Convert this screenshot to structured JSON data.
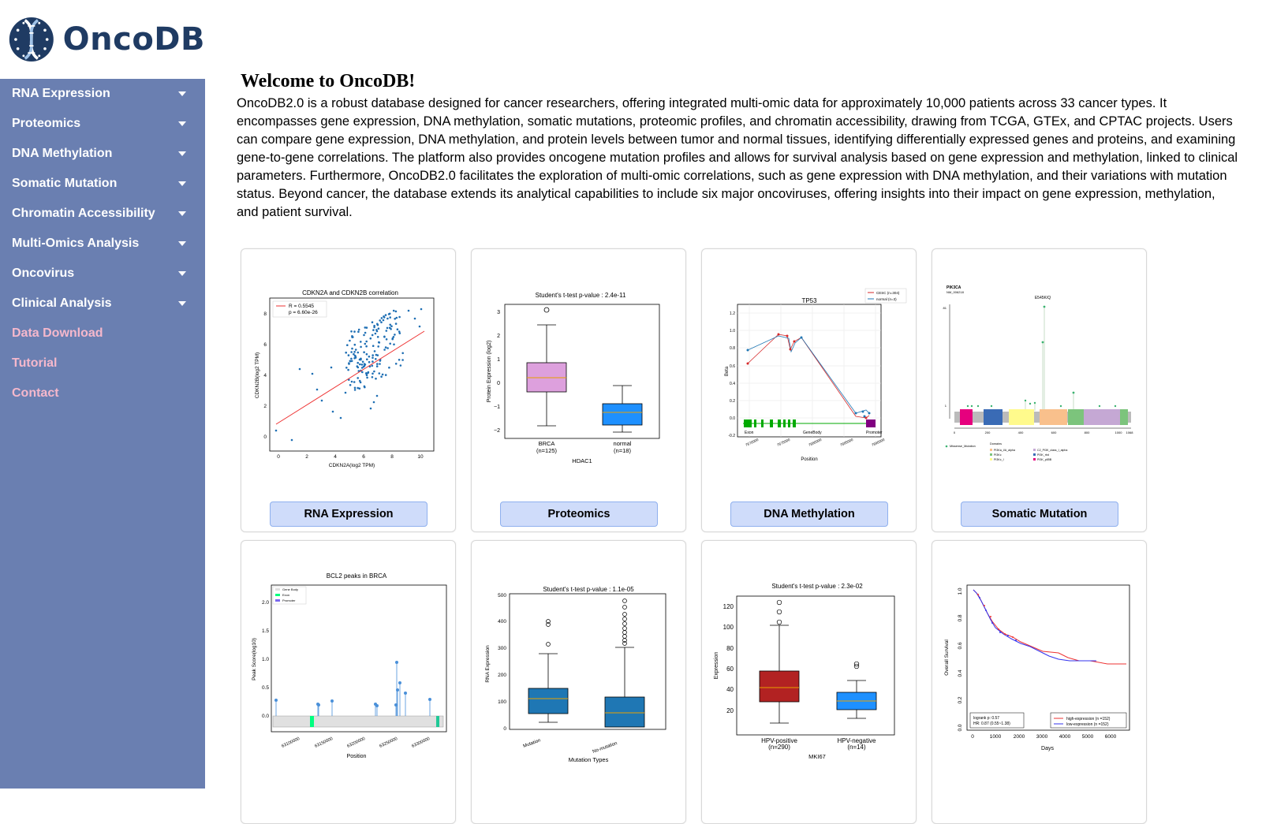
{
  "brand": {
    "name": "OncoDB"
  },
  "sidebar": {
    "items": [
      {
        "label": "RNA Expression",
        "dropdown": true
      },
      {
        "label": "Proteomics",
        "dropdown": true
      },
      {
        "label": "DNA Methylation",
        "dropdown": true
      },
      {
        "label": "Somatic Mutation",
        "dropdown": true
      },
      {
        "label": "Chromatin Accessibility",
        "dropdown": true
      },
      {
        "label": "Multi-Omics Analysis",
        "dropdown": true
      },
      {
        "label": "Oncovirus",
        "dropdown": true
      },
      {
        "label": "Clinical Analysis",
        "dropdown": true
      },
      {
        "label": "Data Download",
        "dropdown": false
      },
      {
        "label": "Tutorial",
        "dropdown": false
      },
      {
        "label": "Contact",
        "dropdown": false
      }
    ]
  },
  "main": {
    "title": "Welcome to OncoDB!",
    "description": "OncoDB2.0 is a robust database designed for cancer researchers, offering integrated multi-omic data for approximately 10,000 patients across 33 cancer types. It encompasses gene expression, DNA methylation, somatic mutations, proteomic profiles, and chromatin accessibility, drawing from TCGA, GTEx, and CPTAC projects. Users can compare gene expression, DNA methylation, and protein levels between tumor and normal tissues, identifying differentially expressed genes and proteins, and examining gene-to-gene correlations. The platform also provides oncogene mutation profiles and allows for survival analysis based on gene expression and methylation, linked to clinical parameters. Furthermore, OncoDB2.0 facilitates the exploration of multi-omic correlations, such as gene expression with DNA methylation, and their variations with mutation status. Beyond cancer, the database extends its analytical capabilities to include six major oncoviruses, offering insights into their impact on gene expression, methylation, and patient survival."
  },
  "cards": [
    {
      "button": "RNA Expression",
      "plot": {
        "title": "CDKN2A and CDKN2B correlation",
        "xlabel": "CDKN2A(log2 TPM)",
        "ylabel": "CDKN2B(log2 TPM)",
        "xticks": [
          "0",
          "2",
          "4",
          "6",
          "8",
          "10"
        ],
        "yticks": [
          "0",
          "2",
          "4",
          "6",
          "8"
        ],
        "legend": [
          "R = 0.5545",
          "p = 6.60e-26"
        ]
      }
    },
    {
      "button": "Proteomics",
      "plot": {
        "title": "Student's t-test p-value : 2.4e-11",
        "ylabel": "Protein Expression (log2)",
        "xlabel": "HDAC1",
        "groups": [
          "BRCA",
          "normal"
        ],
        "counts": [
          "(n=125)",
          "(n=18)"
        ],
        "yticks": [
          "3",
          "2",
          "1",
          "0",
          "−1",
          "−2"
        ]
      }
    },
    {
      "button": "DNA Methylation",
      "plot": {
        "title": "TP53",
        "ylabel": "Beta",
        "xlabel": "Position",
        "legend": [
          "CESC (n=304)",
          "normal (n=3)"
        ],
        "regions": [
          "Exon",
          "GeneBody",
          "Promoter"
        ],
        "yticks": [
          "1.2",
          "1.0",
          "0.8",
          "0.6",
          "0.4",
          "0.2",
          "0.0",
          "-0.2"
        ],
        "xticks": [
          "7670000",
          "7675000",
          "7680000",
          "7685000",
          "7690000"
        ]
      }
    },
    {
      "button": "Somatic Mutation",
      "plot": {
        "gene": "PIK3CA",
        "transcript": "NM_006218",
        "hotspot": "E545K/Q",
        "xticks": [
          "0",
          "200",
          "400",
          "600",
          "800",
          "1000",
          "1068"
        ],
        "yticks": [
          "81",
          "1"
        ],
        "legend_mut": "Missense_Mutation",
        "domains_title": "Domains",
        "domains": [
          "PI3Ka_I/A_alpha",
          "PI3Kc",
          "PI3Kc_I",
          "C2_PI3K_class_I_alpha",
          "PI3K_rbd",
          "PI3K_p85B"
        ]
      }
    },
    {
      "button": "",
      "plot": {
        "title": "BCL2 peaks in BRCA",
        "ylabel": "Peak Score(log10)",
        "xlabel": "Position",
        "legend": [
          "Gene Body",
          "Exon",
          "Promoter"
        ],
        "yticks": [
          "2.0",
          "1.5",
          "1.0",
          "0.5",
          "0.0"
        ],
        "xticks": [
          "63100000",
          "63150000",
          "63200000",
          "63250000",
          "63300000"
        ]
      }
    },
    {
      "button": "",
      "plot": {
        "title": "Student's t-test p-value : 1.1e-05",
        "ylabel": "RNA Expression",
        "xlabel": "Mutation Types",
        "groups": [
          "Mutation",
          "No-mutation"
        ],
        "yticks": [
          "500",
          "400",
          "300",
          "200",
          "100",
          "0"
        ]
      }
    },
    {
      "button": "",
      "plot": {
        "title": "Student's t-test p-value : 2.3e-02",
        "ylabel": "Expression",
        "xlabel": "MKI67",
        "groups": [
          "HPV-positive",
          "HPV-negative"
        ],
        "counts": [
          "(n=290)",
          "(n=14)"
        ],
        "yticks": [
          "120",
          "100",
          "80",
          "60",
          "40",
          "20"
        ]
      }
    },
    {
      "button": "",
      "plot": {
        "ylabel": "Overall Survival",
        "xlabel": "Days",
        "yticks": [
          "1.0",
          "0.8",
          "0.6",
          "0.4",
          "0.2",
          "0.0"
        ],
        "xticks": [
          "0",
          "1000",
          "2000",
          "3000",
          "4000",
          "5000",
          "6000"
        ],
        "stats": [
          "logrank p: 0.57",
          "HR: 0.87 (0.55~1.38)"
        ],
        "legend": [
          "high-expression (n =152)",
          "low-expression (n =152)"
        ]
      }
    }
  ]
}
